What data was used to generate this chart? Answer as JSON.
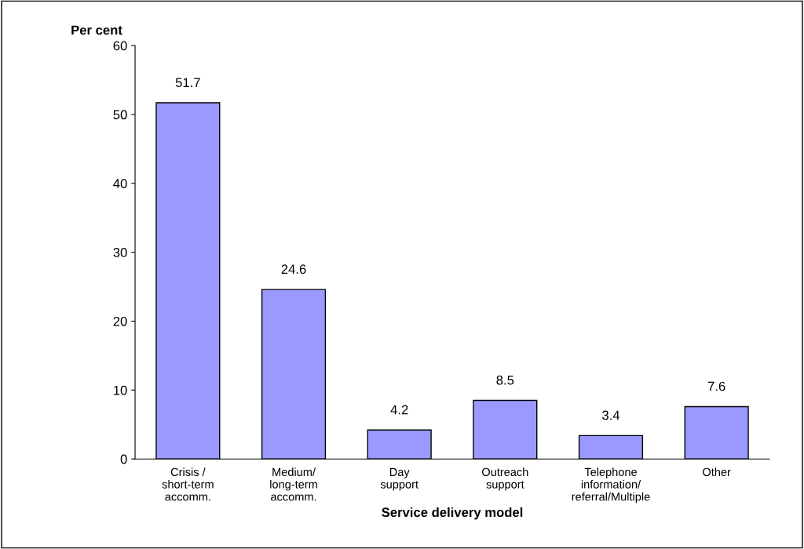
{
  "chart_data": {
    "type": "bar",
    "ylabel": "Per cent",
    "xlabel": "Service delivery model",
    "categories": [
      "Crisis /\nshort-term\naccomm.",
      "Medium/\nlong-term\naccomm.",
      "Day\nsupport",
      "Outreach\nsupport",
      "Telephone\ninformation/\nreferral/Multiple",
      "Other"
    ],
    "values": [
      51.7,
      24.6,
      4.2,
      8.5,
      3.4,
      7.6
    ],
    "color": "#9999ff",
    "ylim": [
      0,
      60
    ],
    "yticks": [
      0,
      10,
      20,
      30,
      40,
      50,
      60
    ],
    "data_labels": true,
    "grid": false,
    "legend": false
  }
}
